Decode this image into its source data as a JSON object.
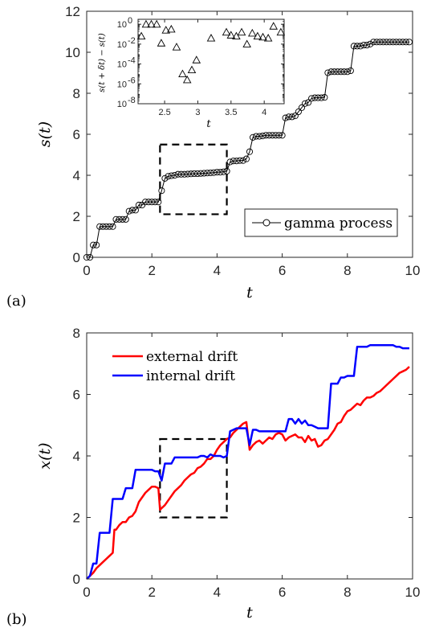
{
  "panel_labels": {
    "a": "(a)",
    "b": "(b)"
  },
  "chart_data": [
    {
      "id": "panel-a",
      "type": "line",
      "xlabel": "t",
      "ylabel": "s(t)",
      "xlim": [
        0,
        10
      ],
      "ylim": [
        0,
        12
      ],
      "xticks": [
        0,
        2,
        4,
        6,
        8,
        10
      ],
      "yticks": [
        0,
        2,
        4,
        6,
        8,
        10,
        12
      ],
      "legend": "bottom-right",
      "highlight_box": {
        "x": [
          2.25,
          4.3
        ],
        "y": [
          2.1,
          5.5
        ]
      },
      "series": [
        {
          "name": "gamma process",
          "color": "#000000",
          "marker": "circle",
          "x": [
            0,
            0.1,
            0.2,
            0.3,
            0.4,
            0.5,
            0.6,
            0.7,
            0.8,
            0.9,
            1.0,
            1.1,
            1.2,
            1.3,
            1.4,
            1.5,
            1.6,
            1.7,
            1.8,
            1.9,
            2.0,
            2.1,
            2.2,
            2.3,
            2.4,
            2.5,
            2.6,
            2.7,
            2.8,
            2.9,
            3.0,
            3.1,
            3.2,
            3.3,
            3.4,
            3.5,
            3.6,
            3.7,
            3.8,
            3.9,
            4.0,
            4.1,
            4.2,
            4.3,
            4.4,
            4.5,
            4.6,
            4.7,
            4.8,
            4.9,
            5.0,
            5.1,
            5.2,
            5.3,
            5.4,
            5.5,
            5.6,
            5.7,
            5.8,
            5.9,
            6.0,
            6.1,
            6.2,
            6.3,
            6.4,
            6.5,
            6.6,
            6.7,
            6.8,
            6.9,
            7.0,
            7.1,
            7.2,
            7.3,
            7.4,
            7.5,
            7.6,
            7.7,
            7.8,
            7.9,
            8.0,
            8.1,
            8.2,
            8.3,
            8.4,
            8.5,
            8.6,
            8.7,
            8.8,
            8.9,
            9.0,
            9.1,
            9.2,
            9.3,
            9.4,
            9.5,
            9.6,
            9.7,
            9.8,
            9.9
          ],
          "y": [
            0,
            0,
            0.6,
            0.6,
            1.5,
            1.5,
            1.5,
            1.5,
            1.5,
            1.85,
            1.85,
            1.85,
            1.85,
            2.25,
            2.3,
            2.3,
            2.55,
            2.55,
            2.7,
            2.7,
            2.7,
            2.7,
            2.7,
            3.25,
            3.85,
            3.95,
            3.98,
            4.0,
            4.05,
            4.05,
            4.05,
            4.06,
            4.07,
            4.08,
            4.08,
            4.09,
            4.1,
            4.11,
            4.12,
            4.13,
            4.15,
            4.15,
            4.17,
            4.2,
            4.65,
            4.7,
            4.7,
            4.72,
            4.72,
            4.8,
            5.15,
            5.85,
            5.9,
            5.9,
            5.92,
            5.95,
            5.95,
            5.95,
            5.95,
            5.95,
            5.95,
            6.8,
            6.85,
            6.85,
            6.9,
            7.1,
            7.3,
            7.5,
            7.55,
            7.75,
            7.78,
            7.78,
            7.78,
            7.8,
            9.0,
            9.05,
            9.05,
            9.05,
            9.05,
            9.05,
            9.05,
            9.1,
            10.3,
            10.3,
            10.3,
            10.35,
            10.35,
            10.4,
            10.5,
            10.5,
            10.5,
            10.5,
            10.5,
            10.5,
            10.5,
            10.5,
            10.5,
            10.5,
            10.5,
            10.5
          ]
        }
      ]
    },
    {
      "id": "panel-a-inset",
      "type": "scatter",
      "xlabel": "t",
      "ylabel": "s(t + δt) − s(t)",
      "xlim": [
        2.1,
        4.3
      ],
      "ylim_log10": [
        -8,
        0.5
      ],
      "yscale": "log",
      "xticks": [
        2.5,
        3,
        3.5,
        4
      ],
      "xtick_labels": [
        "2.5",
        "3",
        "3.5",
        "4"
      ],
      "ytick_exponents": [
        0,
        -2,
        -4,
        -6,
        -8
      ],
      "ytick_labels": [
        "10",
        "10",
        "10",
        "10",
        "10"
      ],
      "ytick_exp_labels": [
        "0",
        "-2",
        "-4",
        "-6",
        "-8"
      ],
      "series": [
        {
          "marker": "triangle",
          "x": [
            2.15,
            2.22,
            2.3,
            2.38,
            2.45,
            2.52,
            2.6,
            2.68,
            2.77,
            2.84,
            2.91,
            2.98,
            3.2,
            3.43,
            3.5,
            3.58,
            3.66,
            3.74,
            3.82,
            3.9,
            3.98,
            4.06,
            4.14,
            4.25
          ],
          "log10_y": [
            -1.2,
            0,
            0,
            0,
            -1.9,
            -0.6,
            -0.5,
            -2.3,
            -5.0,
            -5.6,
            -4.6,
            -3.6,
            -1.4,
            -0.8,
            -1.1,
            -1.2,
            -0.8,
            -2.0,
            -0.9,
            -1.2,
            -1.3,
            -1.4,
            -0.2,
            -0.8
          ]
        }
      ]
    },
    {
      "id": "panel-b",
      "type": "line",
      "xlabel": "t",
      "ylabel": "x(t)",
      "xlim": [
        0,
        10
      ],
      "ylim": [
        0,
        8
      ],
      "xticks": [
        0,
        2,
        4,
        6,
        8,
        10
      ],
      "yticks": [
        0,
        2,
        4,
        6,
        8
      ],
      "legend": "top-left",
      "highlight_box": {
        "x": [
          2.25,
          4.3
        ],
        "y": [
          2.0,
          4.55
        ]
      },
      "series": [
        {
          "name": "external drift",
          "color": "#ff0000",
          "x": [
            0,
            0.1,
            0.2,
            0.3,
            0.4,
            0.5,
            0.6,
            0.7,
            0.8,
            0.85,
            0.9,
            1.0,
            1.1,
            1.2,
            1.3,
            1.4,
            1.5,
            1.6,
            1.7,
            1.8,
            1.9,
            2.0,
            2.1,
            2.2,
            2.25,
            2.3,
            2.4,
            2.5,
            2.6,
            2.7,
            2.8,
            2.9,
            3.0,
            3.1,
            3.2,
            3.3,
            3.4,
            3.5,
            3.6,
            3.7,
            3.8,
            3.9,
            4.0,
            4.1,
            4.2,
            4.3,
            4.4,
            4.5,
            4.6,
            4.7,
            4.8,
            4.9,
            5.0,
            5.1,
            5.2,
            5.3,
            5.4,
            5.5,
            5.6,
            5.7,
            5.8,
            5.9,
            6.0,
            6.1,
            6.2,
            6.3,
            6.4,
            6.5,
            6.6,
            6.7,
            6.8,
            6.9,
            7.0,
            7.1,
            7.2,
            7.3,
            7.4,
            7.5,
            7.6,
            7.7,
            7.8,
            7.9,
            8.0,
            8.1,
            8.2,
            8.3,
            8.4,
            8.5,
            8.6,
            8.7,
            8.8,
            8.9,
            9.0,
            9.1,
            9.2,
            9.3,
            9.4,
            9.5,
            9.6,
            9.7,
            9.8,
            9.9
          ],
          "y": [
            0,
            0.1,
            0.2,
            0.35,
            0.45,
            0.55,
            0.65,
            0.75,
            0.85,
            1.6,
            1.6,
            1.75,
            1.85,
            1.85,
            2.0,
            2.05,
            2.2,
            2.5,
            2.65,
            2.8,
            2.9,
            3.0,
            3.0,
            2.95,
            2.25,
            2.3,
            2.4,
            2.55,
            2.7,
            2.85,
            2.95,
            3.05,
            3.2,
            3.3,
            3.4,
            3.45,
            3.6,
            3.65,
            3.75,
            3.9,
            3.9,
            4.0,
            4.2,
            4.35,
            4.45,
            4.55,
            4.6,
            4.75,
            4.85,
            4.95,
            5.05,
            5.1,
            4.2,
            4.35,
            4.45,
            4.5,
            4.4,
            4.5,
            4.6,
            4.55,
            4.7,
            4.75,
            4.7,
            4.5,
            4.6,
            4.65,
            4.7,
            4.6,
            4.6,
            4.45,
            4.65,
            4.5,
            4.55,
            4.3,
            4.35,
            4.5,
            4.55,
            4.7,
            4.85,
            5.05,
            5.1,
            5.3,
            5.45,
            5.5,
            5.6,
            5.7,
            5.65,
            5.8,
            5.9,
            5.9,
            5.95,
            6.05,
            6.1,
            6.2,
            6.3,
            6.4,
            6.5,
            6.6,
            6.7,
            6.75,
            6.8,
            6.9
          ]
        },
        {
          "name": "internal drift",
          "color": "#0000ff",
          "x": [
            0,
            0.1,
            0.2,
            0.3,
            0.4,
            0.5,
            0.6,
            0.7,
            0.8,
            0.9,
            1.0,
            1.1,
            1.2,
            1.3,
            1.4,
            1.5,
            1.6,
            1.7,
            1.8,
            1.9,
            2.0,
            2.1,
            2.2,
            2.3,
            2.4,
            2.5,
            2.6,
            2.7,
            2.8,
            2.9,
            3.0,
            3.1,
            3.2,
            3.3,
            3.4,
            3.5,
            3.6,
            3.7,
            3.8,
            3.9,
            4.0,
            4.1,
            4.2,
            4.3,
            4.4,
            4.5,
            4.6,
            4.7,
            4.8,
            4.9,
            5.0,
            5.1,
            5.2,
            5.3,
            5.4,
            5.5,
            5.6,
            5.7,
            5.8,
            5.9,
            6.0,
            6.1,
            6.2,
            6.3,
            6.4,
            6.5,
            6.6,
            6.7,
            6.8,
            6.9,
            7.0,
            7.1,
            7.2,
            7.3,
            7.4,
            7.5,
            7.6,
            7.7,
            7.8,
            7.9,
            8.0,
            8.1,
            8.2,
            8.3,
            8.4,
            8.5,
            8.6,
            8.7,
            8.8,
            8.9,
            9.0,
            9.1,
            9.2,
            9.3,
            9.4,
            9.5,
            9.6,
            9.7,
            9.8,
            9.9
          ],
          "y": [
            0,
            0.1,
            0.5,
            0.5,
            1.5,
            1.5,
            1.5,
            1.5,
            2.6,
            2.6,
            2.6,
            2.6,
            2.95,
            2.95,
            2.95,
            3.55,
            3.55,
            3.55,
            3.55,
            3.55,
            3.55,
            3.5,
            3.5,
            3.2,
            3.75,
            3.75,
            3.75,
            3.95,
            3.95,
            3.95,
            3.95,
            3.95,
            3.95,
            3.95,
            3.95,
            4.0,
            4.0,
            3.95,
            4.05,
            4.0,
            4.0,
            4.0,
            3.95,
            4.0,
            4.8,
            4.85,
            4.9,
            4.9,
            4.9,
            4.9,
            4.35,
            4.85,
            4.85,
            4.8,
            4.8,
            4.8,
            4.8,
            4.8,
            4.8,
            4.8,
            4.8,
            4.8,
            5.2,
            5.2,
            5.05,
            5.2,
            5.05,
            5.15,
            5.0,
            5.0,
            4.95,
            4.9,
            4.9,
            4.9,
            4.9,
            6.35,
            6.35,
            6.35,
            6.55,
            6.55,
            6.6,
            6.6,
            6.6,
            7.55,
            7.55,
            7.55,
            7.55,
            7.6,
            7.6,
            7.6,
            7.6,
            7.6,
            7.6,
            7.6,
            7.6,
            7.55,
            7.55,
            7.5,
            7.5,
            7.5
          ]
        }
      ]
    }
  ]
}
